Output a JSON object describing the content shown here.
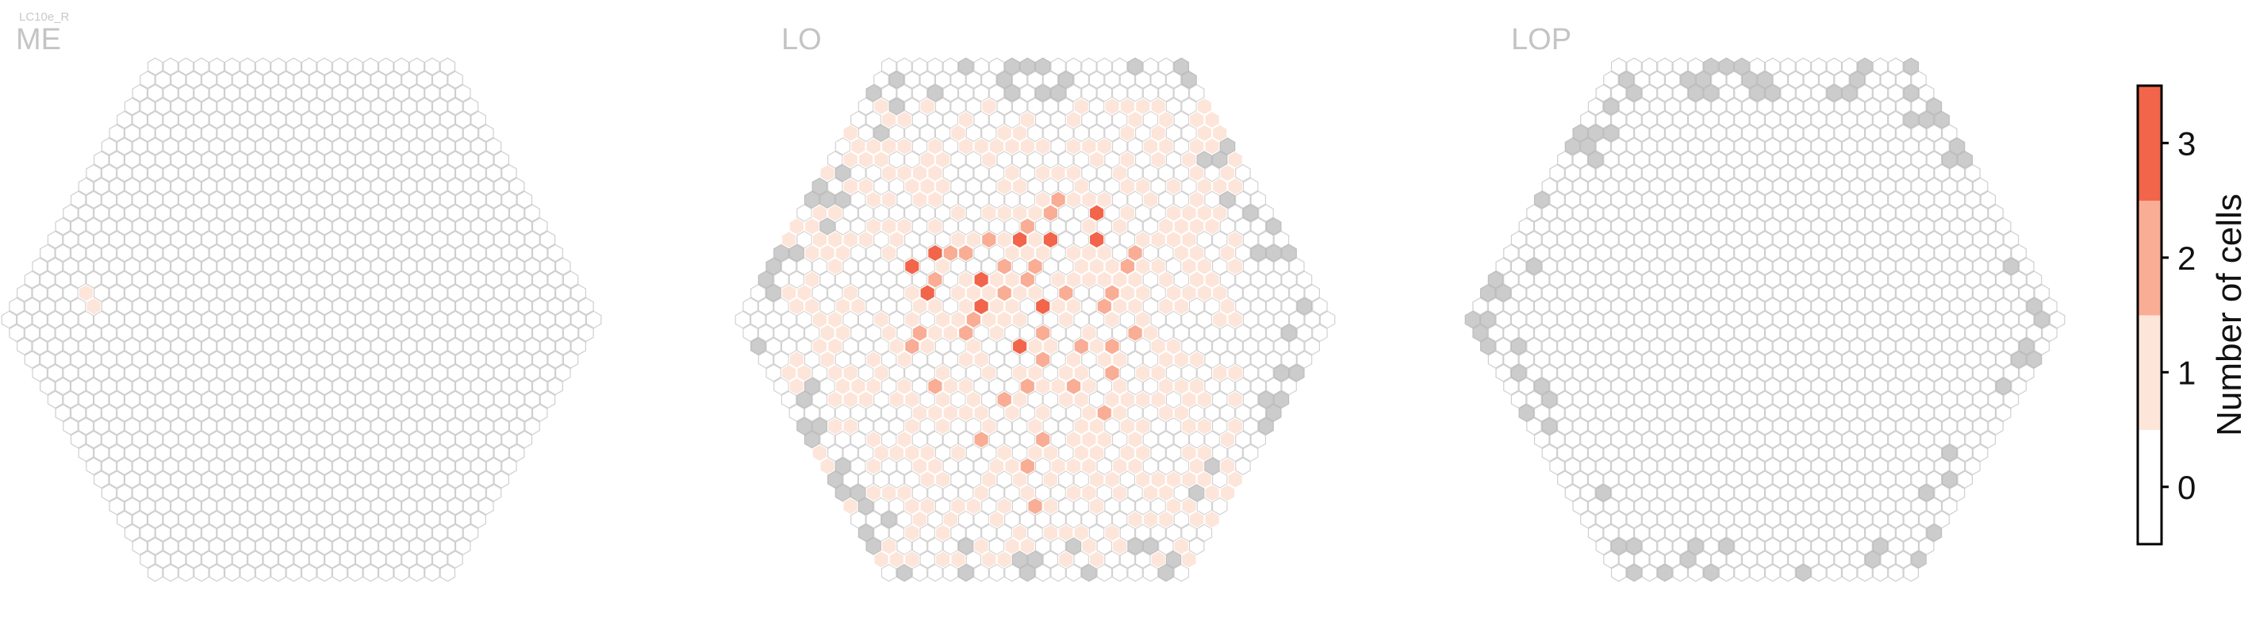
{
  "chart_data": {
    "type": "heatmap",
    "neuron_type": "LC10e_R",
    "panels": [
      {
        "title": "ME",
        "radius": 19,
        "zero_outline": "#cfcfcf",
        "counts": [
          {
            "q": -13,
            "r": -2,
            "v": 1
          },
          {
            "q": -13,
            "r": -1,
            "v": 1
          }
        ],
        "uncovered": []
      },
      {
        "title": "LO",
        "radius": 19,
        "zero_outline": "#d2d2d2",
        "counts": [
          {
            "q": -6,
            "r": -4,
            "v": 3
          },
          {
            "q": -4,
            "r": -5,
            "v": 3
          },
          {
            "q": -6,
            "r": -2,
            "v": 3
          },
          {
            "q": -2,
            "r": -3,
            "v": 3
          },
          {
            "q": -3,
            "r": -1,
            "v": 3
          },
          {
            "q": 2,
            "r": -6,
            "v": 3
          },
          {
            "q": 4,
            "r": -6,
            "v": 3
          },
          {
            "q": 8,
            "r": -8,
            "v": 3
          },
          {
            "q": 1,
            "r": -1,
            "v": 3
          },
          {
            "q": -2,
            "r": 2,
            "v": 3
          },
          {
            "q": 7,
            "r": -6,
            "v": 3
          },
          {
            "q": -5,
            "r": -3,
            "v": 2
          },
          {
            "q": -3,
            "r": -5,
            "v": 2
          },
          {
            "q": -2,
            "r": -5,
            "v": 2
          },
          {
            "q": 0,
            "r": -4,
            "v": 2
          },
          {
            "q": 2,
            "r": -4,
            "v": 2
          },
          {
            "q": 3,
            "r": -7,
            "v": 2
          },
          {
            "q": 6,
            "r": -9,
            "v": 2
          },
          {
            "q": -8,
            "r": 1,
            "v": 2
          },
          {
            "q": -4,
            "r": 0,
            "v": 2
          },
          {
            "q": 0,
            "r": 1,
            "v": 2
          },
          {
            "q": 3,
            "r": -2,
            "v": 2
          },
          {
            "q": 5,
            "r": -1,
            "v": 2
          },
          {
            "q": 6,
            "r": -2,
            "v": 2
          },
          {
            "q": 8,
            "r": -4,
            "v": 2
          },
          {
            "q": -1,
            "r": 3,
            "v": 2
          },
          {
            "q": 2,
            "r": 2,
            "v": 2
          },
          {
            "q": 4,
            "r": 2,
            "v": 2
          },
          {
            "q": 6,
            "r": 1,
            "v": 2
          },
          {
            "q": -9,
            "r": 5,
            "v": 2
          },
          {
            "q": -5,
            "r": 6,
            "v": 2
          },
          {
            "q": -3,
            "r": 5,
            "v": 2
          },
          {
            "q": 0,
            "r": 5,
            "v": 2
          },
          {
            "q": 3,
            "r": 4,
            "v": 2
          },
          {
            "q": -8,
            "r": 9,
            "v": 2
          },
          {
            "q": -6,
            "r": 11,
            "v": 2
          },
          {
            "q": -4,
            "r": 9,
            "v": 2
          },
          {
            "q": 1,
            "r": 7,
            "v": 2
          },
          {
            "q": -7,
            "r": 14,
            "v": 2
          },
          {
            "q": -9,
            "r": 2,
            "v": 2
          },
          {
            "q": -1,
            "r": -2,
            "v": 2
          },
          {
            "q": 1,
            "r": -3,
            "v": 2
          },
          {
            "q": 9,
            "r": -5,
            "v": 2
          },
          {
            "q": -5,
            "r": 1,
            "v": 2
          },
          {
            "q": 0,
            "r": -6,
            "v": 2
          },
          {
            "q": 5,
            "r": -8,
            "v": 2
          }
        ],
        "ones_density": 0.5,
        "uncovered_min_radius": 17,
        "uncovered": [
          {
            "q": -19,
            "r": 9
          },
          {
            "q": -13,
            "r": -5
          }
        ]
      },
      {
        "title": "LOP",
        "radius": 19,
        "zero_outline": "#cfcfcf",
        "counts": [],
        "uncovered_min_radius": 17,
        "uncovered": []
      }
    ],
    "colorbar": {
      "label": "Number of cells",
      "ticks": [
        "0",
        "1",
        "2",
        "3"
      ],
      "levels": [
        0,
        1,
        2,
        3
      ],
      "colors": [
        "#ffffff",
        "#fde5da",
        "#f8ad94",
        "#f2654a"
      ],
      "uncovered_color": "#cccccc"
    }
  }
}
